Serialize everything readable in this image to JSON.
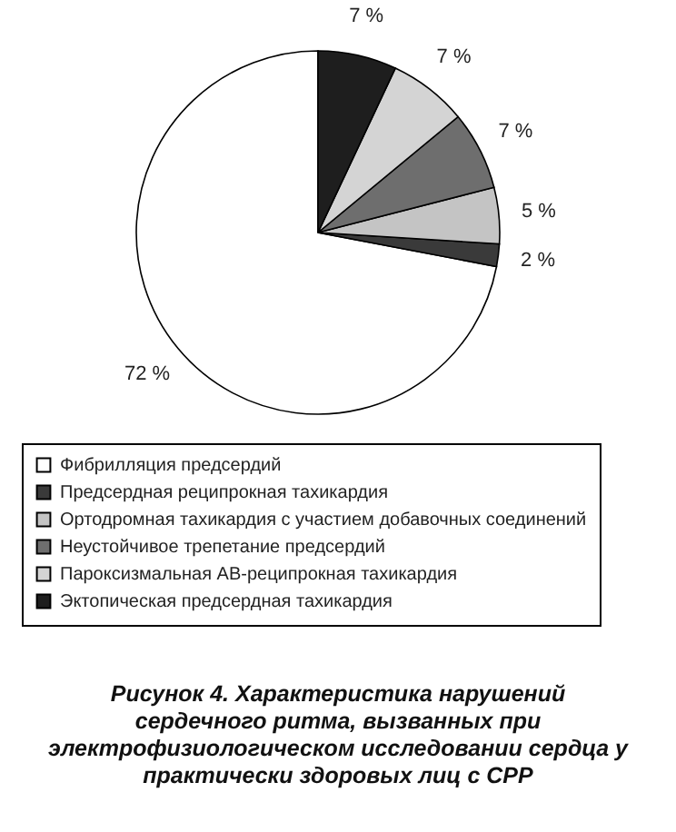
{
  "chart_data": {
    "type": "pie",
    "title": "Рисунок 4. Характеристика нарушений сердечного ритма, вызванных при электрофизиологическом исследовании сердца у практически здоровых лиц с СРР",
    "categories": [
      "Фибрилляция предсердий",
      "Предсердная реципрокная тахикардия",
      "Ортодромная тахикардия с участием добавочных соединений",
      "Неустойчивое трепетание предсердий",
      "Пароксизмальная АВ-реципрокная тахикардия",
      "Эктопическая предсердная тахикардия"
    ],
    "values": [
      72,
      2,
      5,
      7,
      7,
      7
    ],
    "colors": [
      "#ffffff",
      "#3a3a3a",
      "#c4c4c4",
      "#6e6e6e",
      "#d4d4d4",
      "#1e1e1e"
    ],
    "value_labels": [
      "72 %",
      "2 %",
      "5 %",
      "7 %",
      "7 %",
      "7 %"
    ],
    "legend": "bottom"
  }
}
